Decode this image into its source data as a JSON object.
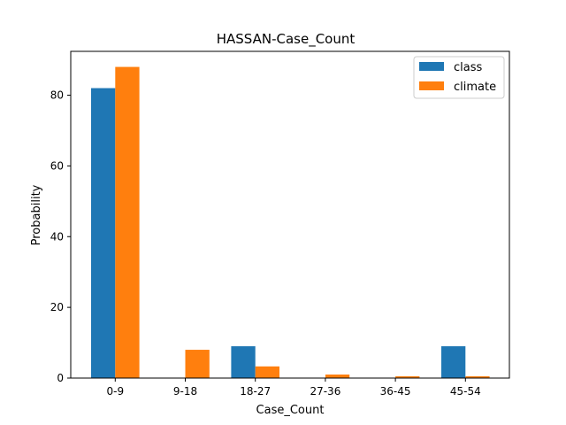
{
  "chart_data": {
    "type": "bar",
    "title": "HASSAN-Case_Count",
    "xlabel": "Case_Count",
    "ylabel": "Probability",
    "categories": [
      "0-9",
      "9-18",
      "18-27",
      "27-36",
      "36-45",
      "45-54"
    ],
    "series": [
      {
        "name": "class",
        "color": "#1f77b4",
        "values": [
          82,
          0,
          9,
          0,
          0,
          9
        ]
      },
      {
        "name": "climate",
        "color": "#ff7f0e",
        "values": [
          88,
          8,
          3.3,
          1.0,
          0.5,
          0.5
        ]
      }
    ],
    "yticks": [
      0,
      20,
      40,
      60,
      80
    ],
    "ylim": [
      0,
      92.4
    ],
    "grid": false,
    "legend_position": "top-right"
  }
}
